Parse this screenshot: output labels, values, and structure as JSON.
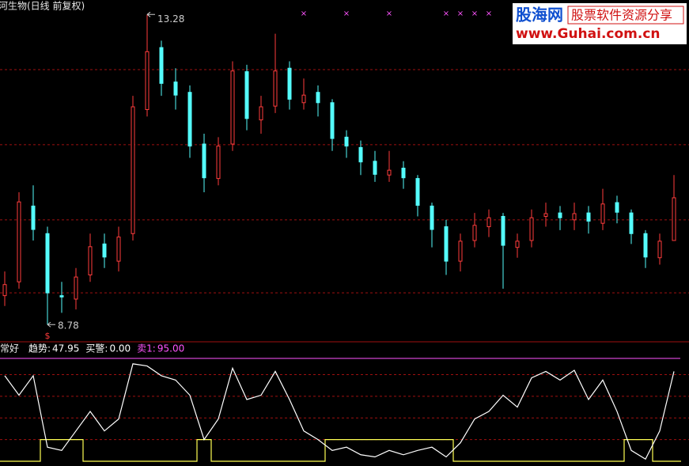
{
  "title": "金河生物(日线 前复权)",
  "watermark": {
    "logo": "股海网",
    "slogan": "股票软件资源分享",
    "url": "www.Guhai.com.cn"
  },
  "chart_data": [
    {
      "type": "candlestick",
      "up_color": "#ff3c3c",
      "down_color": "#54fcfc",
      "open": [
        9.2,
        9.4,
        10.5,
        10.1,
        9.2,
        9.15,
        9.5,
        9.95,
        9.7,
        10.1,
        11.9,
        12.8,
        12.3,
        12.15,
        11.4,
        10.9,
        11.4,
        12.45,
        11.75,
        11.95,
        12.5,
        12.0,
        12.15,
        12.0,
        11.5,
        11.35,
        11.15,
        10.95,
        11.05,
        10.9,
        10.5,
        10.2,
        9.7,
        10.0,
        10.2,
        10.35,
        9.9,
        10.0,
        10.35,
        10.4,
        10.3,
        10.4,
        10.25,
        10.55,
        10.4,
        10.1,
        9.75,
        10.0
      ],
      "high": [
        9.55,
        10.7,
        10.8,
        10.2,
        9.4,
        9.6,
        10.1,
        10.1,
        10.2,
        12.1,
        13.28,
        12.9,
        12.5,
        12.25,
        11.55,
        11.5,
        12.6,
        12.55,
        12.1,
        13.0,
        12.6,
        12.35,
        12.25,
        12.05,
        11.6,
        11.45,
        11.3,
        11.3,
        11.15,
        10.95,
        10.55,
        10.3,
        10.1,
        10.4,
        10.45,
        10.4,
        10.1,
        10.45,
        10.55,
        10.5,
        10.55,
        10.5,
        10.75,
        10.65,
        10.45,
        10.15,
        10.1,
        10.95
      ],
      "low": [
        9.05,
        9.3,
        10.0,
        8.78,
        8.95,
        9.0,
        9.4,
        9.6,
        9.55,
        10.0,
        11.8,
        12.1,
        11.9,
        11.2,
        10.7,
        10.8,
        11.3,
        11.6,
        11.55,
        11.85,
        11.9,
        11.9,
        11.8,
        11.3,
        11.2,
        10.95,
        10.85,
        10.85,
        10.75,
        10.35,
        9.9,
        9.5,
        9.55,
        9.9,
        10.05,
        9.3,
        9.75,
        9.9,
        10.2,
        10.15,
        10.15,
        10.1,
        10.15,
        10.25,
        9.95,
        9.6,
        9.65,
        10.0
      ],
      "close": [
        9.36,
        10.56,
        10.16,
        9.24,
        9.18,
        9.47,
        9.91,
        9.76,
        10.05,
        11.94,
        12.74,
        12.28,
        12.11,
        11.37,
        10.91,
        11.37,
        12.46,
        11.77,
        11.94,
        12.46,
        12.05,
        12.11,
        12.0,
        11.48,
        11.37,
        11.14,
        10.96,
        11.02,
        10.91,
        10.51,
        10.16,
        9.7,
        9.99,
        10.22,
        10.33,
        9.93,
        9.99,
        10.33,
        10.39,
        10.33,
        10.39,
        10.28,
        10.53,
        10.41,
        10.1,
        9.76,
        9.99,
        10.62
      ],
      "ylim": [
        8.53,
        13.49
      ],
      "grid_levels": [
        12.48,
        11.39,
        10.3,
        9.24
      ],
      "grid_color": "#a01010",
      "high_label": 13.28,
      "low_label": 8.78,
      "sell_marker": "×",
      "sell_signals": [
        21,
        24,
        27,
        31,
        32,
        33,
        34
      ],
      "sell_color": "#ff54ff",
      "buy_marker": "$",
      "buy_signals": [
        3
      ],
      "buy_color": "#ff3c3c"
    },
    {
      "type": "line",
      "series": [
        {
          "name": "非常好",
          "color": "#ffff54",
          "step": true,
          "values": [
            0,
            0,
            0,
            20,
            20,
            20,
            0,
            0,
            0,
            0,
            0,
            0,
            0,
            0,
            20,
            0,
            0,
            0,
            0,
            0,
            0,
            0,
            0,
            20,
            20,
            20,
            20,
            20,
            20,
            20,
            20,
            20,
            0,
            0,
            0,
            0,
            0,
            0,
            0,
            0,
            0,
            0,
            0,
            0,
            20,
            20,
            0,
            0
          ]
        },
        {
          "name": "趋势:",
          "color": "#ffffff",
          "values": [
            79,
            61,
            79,
            13,
            10,
            28,
            46,
            28,
            39,
            90,
            88,
            79,
            75,
            61,
            20,
            39,
            86,
            57,
            61,
            83,
            57,
            28,
            20,
            10,
            13,
            6,
            4,
            10,
            6,
            10,
            13,
            4,
            17,
            39,
            46,
            61,
            50,
            77,
            83,
            75,
            84,
            57,
            75,
            46,
            10,
            2,
            28,
            83
          ]
        }
      ],
      "readouts": [
        {
          "name": "趋势:",
          "value": 47.95,
          "color": "#ffffff"
        },
        {
          "name": "买警:",
          "value": 0,
          "value_label": "0.00",
          "color": "#ffffff"
        },
        {
          "name": "卖1:",
          "value": 95,
          "value_label": "95.00",
          "color": "#ff54ff"
        }
      ],
      "ylim": [
        -4.4,
        106.7
      ],
      "grid_levels": [
        20,
        40,
        60,
        80
      ],
      "grid_color": "#a01010"
    }
  ]
}
